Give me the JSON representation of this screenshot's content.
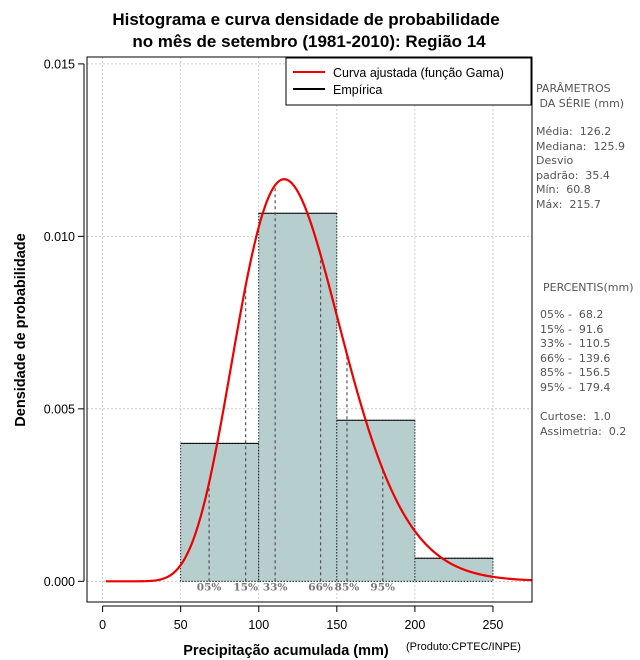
{
  "chart_data": {
    "type": "histogram",
    "title": [
      "Histograma e curva densidade de probabilidade",
      "no mês de setembro (1981-2010): Região 14"
    ],
    "xlabel": "Precipitação acumulada (mm)",
    "ylabel": "Densidade de probabilidade",
    "credit": "(Produto:CPTEC/INPE)",
    "xlim": [
      -10,
      275
    ],
    "ylim": [
      -0.0006,
      0.0152
    ],
    "xticks": [
      0,
      50,
      100,
      150,
      200,
      250
    ],
    "xtick_labels": [
      "0",
      "50",
      "100",
      "150",
      "200",
      "250"
    ],
    "yticks": [
      0.0,
      0.005,
      0.01,
      0.015
    ],
    "ytick_labels": [
      "0.000",
      "0.005",
      "0.010",
      "0.015"
    ],
    "grid": true,
    "bins": [
      {
        "start": 50,
        "end": 100,
        "density": 0.004
      },
      {
        "start": 100,
        "end": 150,
        "density": 0.01067
      },
      {
        "start": 150,
        "end": 200,
        "density": 0.00467
      },
      {
        "start": 200,
        "end": 250,
        "density": 0.00067
      }
    ],
    "gamma_fit": {
      "mean": 126.2,
      "sd": 35.4
    },
    "legend": [
      {
        "label": "Curva ajustada (função Gama)",
        "color": "#ee0000"
      },
      {
        "label": "Empírica",
        "color": "#000000"
      }
    ],
    "percentile_markers": [
      {
        "label": "05%",
        "value": 68.2
      },
      {
        "label": "15%",
        "value": 91.6
      },
      {
        "label": "33%",
        "value": 110.5
      },
      {
        "label": "66%",
        "value": 139.6
      },
      {
        "label": "85%",
        "value": 156.5
      },
      {
        "label": "95%",
        "value": 179.4
      }
    ],
    "colors": {
      "bar": "#b6cecd",
      "curve": "#ee0000",
      "grid": "#c0c0c0"
    }
  },
  "side_panel": {
    "params_title": "PARÂMETROS\n DA SÉRIE (mm)",
    "params": "Média:  126.2\nMediana:  125.9\nDesvio\npadrão:  35.4\nMín:  60.8\nMáx:  215.7",
    "perc_title": "PERCENTIS(mm)",
    "percentiles": "05% -  68.2\n15% -  91.6\n33% -  110.5\n66% -  139.6\n85% -  156.5\n95% -  179.4",
    "stats": "Curtose:  1.0\nAssimetria:  0.2"
  }
}
